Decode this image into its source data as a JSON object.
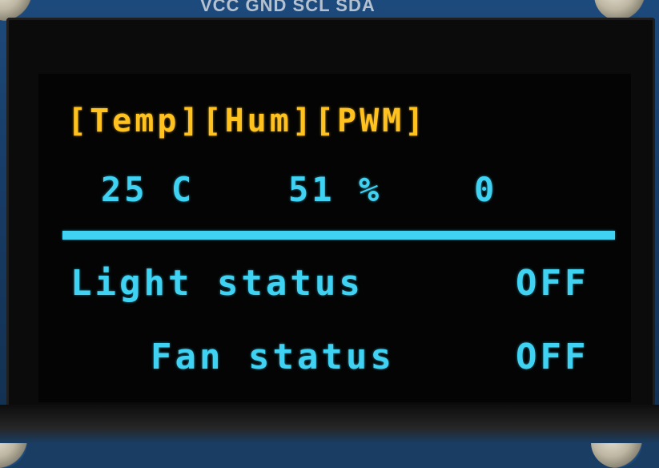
{
  "board": {
    "pin_label": "VCC GND SCL SDA"
  },
  "display": {
    "headers": {
      "temp": "[Temp]",
      "hum": "[Hum]",
      "pwm": "[PWM]"
    },
    "readings": {
      "temp": "25 C",
      "hum": "51 %",
      "pwm": "0"
    },
    "light": {
      "label": "Light status",
      "state": "OFF"
    },
    "fan": {
      "label": "Fan status",
      "state": "OFF"
    }
  },
  "colors": {
    "header_yellow": "#ffc21f",
    "text_cyan": "#3fd2f2",
    "screen_black": "#040404",
    "pcb_blue": "#1a3d63"
  }
}
